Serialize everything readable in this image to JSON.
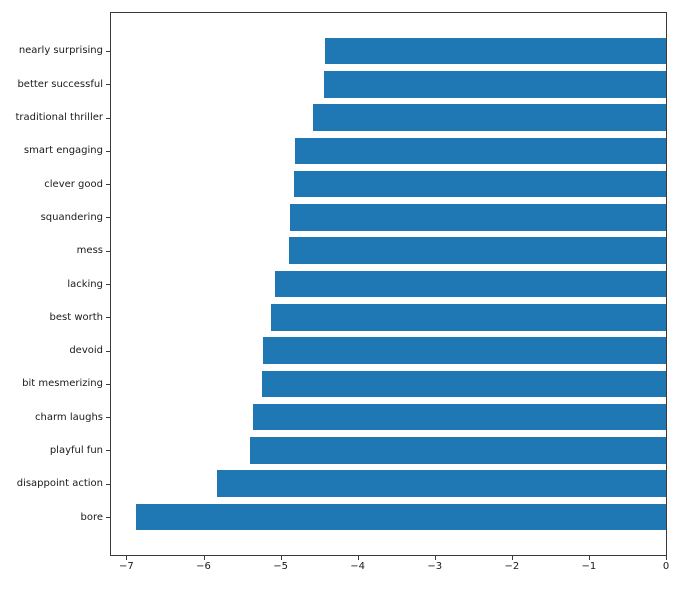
{
  "chart_data": {
    "type": "bar",
    "orientation": "horizontal",
    "title": "",
    "xlabel": "",
    "ylabel": "",
    "grid": false,
    "legend": "none",
    "background_color": "#ffffff",
    "bar_color": "#1f77b4",
    "axis_color": "#3a3a3a",
    "text_color": "#1a1a1a",
    "xlim": [
      -7.2,
      0
    ],
    "categories": [
      "nearly surprising",
      "better successful",
      "traditional thriller",
      "smart engaging",
      "clever good",
      "squandering",
      "mess",
      "lacking",
      "best worth",
      "devoid",
      "bit mesmerizing",
      "charm laughs",
      "playful fun",
      "disappoint action",
      "bore"
    ],
    "values": [
      -4.43,
      -4.44,
      -4.58,
      -4.81,
      -4.82,
      -4.88,
      -4.89,
      -5.07,
      -5.12,
      -5.23,
      -5.24,
      -5.36,
      -5.4,
      -5.82,
      -6.87
    ],
    "x_tick_values": [
      -7,
      -6,
      -5,
      -4,
      -3,
      -2,
      -1,
      0
    ],
    "x_tick_labels": [
      "−7",
      "−6",
      "−5",
      "−4",
      "−3",
      "−2",
      "−1",
      "0"
    ]
  }
}
